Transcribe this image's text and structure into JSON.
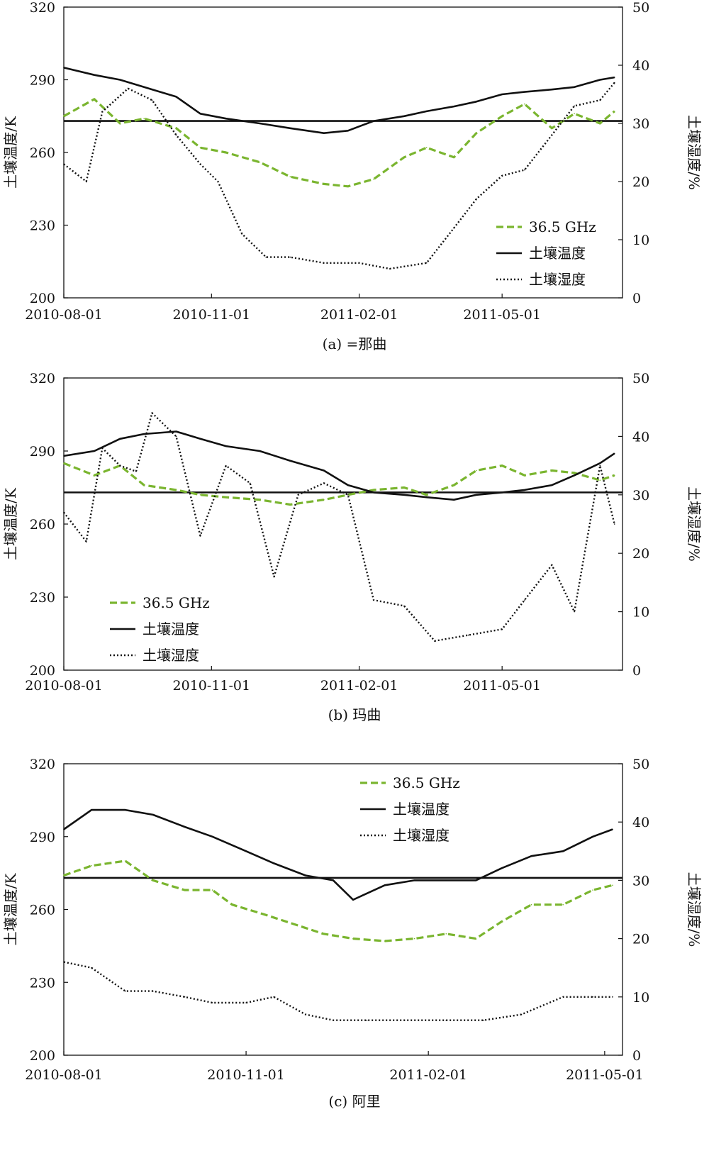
{
  "colors": {
    "green": "#7ab52f",
    "black": "#111111"
  },
  "chart_data": [
    {
      "type": "line",
      "caption": "(a) =那曲",
      "ylabel_left": "土壤温度/K",
      "ylabel_right": "土壤湿度/%",
      "x_ticks": [
        "2010-08-01",
        "2010-11-01",
        "2011-02-01",
        "2011-05-01"
      ],
      "x_range": [
        "2010-08-01",
        "2011-07-15"
      ],
      "y_left_ticks": [
        320,
        290,
        260,
        230,
        200
      ],
      "y_left_range": [
        200,
        320
      ],
      "y_right_ticks": [
        50,
        40,
        30,
        20,
        10,
        0
      ],
      "y_right_range": [
        0,
        50
      ],
      "reference_line": 273,
      "legend_position": "lower-right",
      "series": [
        {
          "name": "36.5 GHz",
          "axis": "left",
          "style": "dashed",
          "color": "#7ab52f",
          "x": [
            "2010-08-01",
            "2010-08-20",
            "2010-09-05",
            "2010-09-20",
            "2010-10-10",
            "2010-10-25",
            "2010-11-10",
            "2010-12-01",
            "2010-12-20",
            "2011-01-10",
            "2011-01-25",
            "2011-02-10",
            "2011-03-01",
            "2011-03-15",
            "2011-04-01",
            "2011-04-15",
            "2011-05-01",
            "2011-05-15",
            "2011-06-01",
            "2011-06-15",
            "2011-07-01",
            "2011-07-10"
          ],
          "y": [
            275,
            282,
            272,
            274,
            270,
            262,
            260,
            256,
            250,
            247,
            246,
            249,
            258,
            262,
            258,
            268,
            275,
            280,
            270,
            276,
            272,
            277
          ]
        },
        {
          "name": "土壤温度",
          "axis": "left",
          "style": "solid",
          "color": "#111111",
          "x": [
            "2010-08-01",
            "2010-08-20",
            "2010-09-05",
            "2010-09-20",
            "2010-10-10",
            "2010-10-25",
            "2010-11-10",
            "2010-12-01",
            "2010-12-20",
            "2011-01-10",
            "2011-01-25",
            "2011-02-10",
            "2011-03-01",
            "2011-03-15",
            "2011-04-01",
            "2011-04-15",
            "2011-05-01",
            "2011-05-15",
            "2011-06-01",
            "2011-06-15",
            "2011-07-01",
            "2011-07-10"
          ],
          "y": [
            295,
            292,
            290,
            287,
            283,
            276,
            274,
            272,
            270,
            268,
            269,
            273,
            275,
            277,
            279,
            281,
            284,
            285,
            286,
            287,
            290,
            291
          ]
        },
        {
          "name": "土壤湿度",
          "axis": "right",
          "style": "dotted",
          "color": "#111111",
          "x": [
            "2010-08-01",
            "2010-08-15",
            "2010-08-25",
            "2010-09-10",
            "2010-09-25",
            "2010-10-10",
            "2010-10-25",
            "2010-11-05",
            "2010-11-20",
            "2010-12-05",
            "2010-12-20",
            "2011-01-10",
            "2011-02-01",
            "2011-02-20",
            "2011-03-15",
            "2011-04-01",
            "2011-04-15",
            "2011-05-01",
            "2011-05-15",
            "2011-06-01",
            "2011-06-15",
            "2011-07-01",
            "2011-07-10"
          ],
          "y": [
            23,
            20,
            32,
            36,
            34,
            28,
            23,
            20,
            11,
            7,
            7,
            6,
            6,
            5,
            6,
            12,
            17,
            21,
            22,
            28,
            33,
            34,
            37
          ]
        }
      ]
    },
    {
      "type": "line",
      "caption": "(b) 玛曲",
      "ylabel_left": "土壤温度/K",
      "ylabel_right": "土壤湿度/%",
      "x_ticks": [
        "2010-08-01",
        "2010-11-01",
        "2011-02-01",
        "2011-05-01"
      ],
      "x_range": [
        "2010-08-01",
        "2011-07-15"
      ],
      "y_left_ticks": [
        320,
        290,
        260,
        230,
        200
      ],
      "y_left_range": [
        200,
        320
      ],
      "y_right_ticks": [
        50,
        40,
        30,
        20,
        10,
        0
      ],
      "y_right_range": [
        0,
        50
      ],
      "reference_line": 273,
      "legend_position": "lower-left",
      "series": [
        {
          "name": "36.5 GHz",
          "axis": "left",
          "style": "dashed",
          "color": "#7ab52f",
          "x": [
            "2010-08-01",
            "2010-08-20",
            "2010-09-05",
            "2010-09-20",
            "2010-10-10",
            "2010-10-25",
            "2010-11-10",
            "2010-12-01",
            "2010-12-20",
            "2011-01-10",
            "2011-01-25",
            "2011-02-10",
            "2011-03-01",
            "2011-03-15",
            "2011-04-01",
            "2011-04-15",
            "2011-05-01",
            "2011-05-15",
            "2011-06-01",
            "2011-06-15",
            "2011-07-01",
            "2011-07-10"
          ],
          "y": [
            285,
            280,
            284,
            276,
            274,
            272,
            271,
            270,
            268,
            270,
            272,
            274,
            275,
            272,
            276,
            282,
            284,
            280,
            282,
            281,
            278,
            280
          ]
        },
        {
          "name": "土壤温度",
          "axis": "left",
          "style": "solid",
          "color": "#111111",
          "x": [
            "2010-08-01",
            "2010-08-20",
            "2010-09-05",
            "2010-09-20",
            "2010-10-10",
            "2010-10-25",
            "2010-11-10",
            "2010-12-01",
            "2010-12-20",
            "2011-01-10",
            "2011-01-25",
            "2011-02-10",
            "2011-03-01",
            "2011-03-15",
            "2011-04-01",
            "2011-04-15",
            "2011-05-01",
            "2011-05-15",
            "2011-06-01",
            "2011-06-15",
            "2011-07-01",
            "2011-07-10"
          ],
          "y": [
            288,
            290,
            295,
            297,
            298,
            295,
            292,
            290,
            286,
            282,
            276,
            273,
            272,
            271,
            270,
            272,
            273,
            274,
            276,
            280,
            285,
            289
          ]
        },
        {
          "name": "土壤湿度",
          "axis": "right",
          "style": "dotted",
          "color": "#111111",
          "x": [
            "2010-08-01",
            "2010-08-15",
            "2010-08-25",
            "2010-09-05",
            "2010-09-15",
            "2010-09-25",
            "2010-10-10",
            "2010-10-25",
            "2010-11-10",
            "2010-11-25",
            "2010-12-10",
            "2010-12-25",
            "2011-01-10",
            "2011-01-25",
            "2011-02-10",
            "2011-03-01",
            "2011-03-20",
            "2011-04-10",
            "2011-05-01",
            "2011-05-15",
            "2011-06-01",
            "2011-06-15",
            "2011-07-01",
            "2011-07-10"
          ],
          "y": [
            27,
            22,
            38,
            35,
            34,
            44,
            40,
            23,
            35,
            32,
            16,
            30,
            32,
            30,
            12,
            11,
            5,
            6,
            7,
            12,
            18,
            10,
            35,
            25
          ]
        }
      ]
    },
    {
      "type": "line",
      "caption": "(c) 阿里",
      "ylabel_left": "土壤温度/K",
      "ylabel_right": "土壤湿度/%",
      "x_ticks": [
        "2010-08-01",
        "2010-11-01",
        "2011-02-01",
        "2011-05-01"
      ],
      "x_range": [
        "2010-08-01",
        "2011-05-10"
      ],
      "y_left_ticks": [
        320,
        290,
        260,
        230,
        200
      ],
      "y_left_range": [
        200,
        320
      ],
      "y_right_ticks": [
        50,
        40,
        30,
        20,
        10,
        0
      ],
      "y_right_range": [
        0,
        50
      ],
      "reference_line": 273,
      "legend_position": "top-right",
      "series": [
        {
          "name": "36.5 GHz",
          "axis": "left",
          "style": "dashed",
          "color": "#7ab52f",
          "x": [
            "2010-08-01",
            "2010-08-15",
            "2010-09-01",
            "2010-09-15",
            "2010-10-01",
            "2010-10-15",
            "2010-10-25",
            "2010-11-10",
            "2010-11-25",
            "2010-12-10",
            "2010-12-25",
            "2011-01-10",
            "2011-01-25",
            "2011-02-10",
            "2011-02-25",
            "2011-03-10",
            "2011-03-25",
            "2011-04-10",
            "2011-04-25",
            "2011-05-05"
          ],
          "y": [
            274,
            278,
            280,
            272,
            268,
            268,
            262,
            258,
            254,
            250,
            248,
            247,
            248,
            250,
            248,
            255,
            262,
            262,
            268,
            270
          ]
        },
        {
          "name": "土壤温度",
          "axis": "left",
          "style": "solid",
          "color": "#111111",
          "x": [
            "2010-08-01",
            "2010-08-15",
            "2010-09-01",
            "2010-09-15",
            "2010-10-01",
            "2010-10-15",
            "2010-11-01",
            "2010-11-15",
            "2010-12-01",
            "2010-12-15",
            "2010-12-25",
            "2011-01-10",
            "2011-01-25",
            "2011-02-10",
            "2011-02-25",
            "2011-03-10",
            "2011-03-25",
            "2011-04-10",
            "2011-04-25",
            "2011-05-05"
          ],
          "y": [
            293,
            301,
            301,
            299,
            294,
            290,
            284,
            279,
            274,
            272,
            264,
            270,
            272,
            272,
            272,
            277,
            282,
            284,
            290,
            293
          ]
        },
        {
          "name": "土壤湿度",
          "axis": "right",
          "style": "dotted",
          "color": "#111111",
          "x": [
            "2010-08-01",
            "2010-08-15",
            "2010-09-01",
            "2010-09-15",
            "2010-10-01",
            "2010-10-15",
            "2010-11-01",
            "2010-11-15",
            "2010-12-01",
            "2010-12-15",
            "2011-01-01",
            "2011-01-20",
            "2011-02-10",
            "2011-03-01",
            "2011-03-20",
            "2011-04-10",
            "2011-04-25",
            "2011-05-05"
          ],
          "y": [
            16,
            15,
            11,
            11,
            10,
            9,
            9,
            10,
            7,
            6,
            6,
            6,
            6,
            6,
            7,
            10,
            10,
            10
          ]
        }
      ]
    }
  ]
}
